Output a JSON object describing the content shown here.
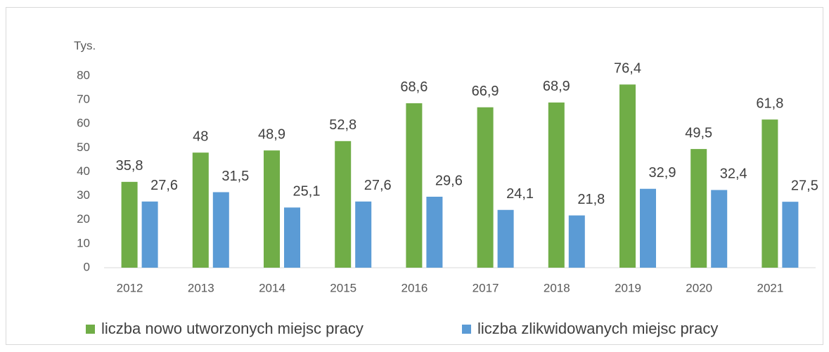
{
  "chart_data": {
    "type": "bar",
    "y_label": "Tys.",
    "categories": [
      "2012",
      "2013",
      "2014",
      "2015",
      "2016",
      "2017",
      "2018",
      "2019",
      "2020",
      "2021"
    ],
    "series": [
      {
        "name": "liczba nowo utworzonych miejsc pracy",
        "color": "#70ad47",
        "values": [
          35.8,
          48,
          48.9,
          52.8,
          68.6,
          66.9,
          68.9,
          76.4,
          49.5,
          61.8
        ],
        "value_labels": [
          "35,8",
          "48",
          "48,9",
          "52,8",
          "68,6",
          "66,9",
          "68,9",
          "76,4",
          "49,5",
          "61,8"
        ]
      },
      {
        "name": "liczba zlikwidowanych miejsc pracy",
        "color": "#5b9bd5",
        "values": [
          27.6,
          31.5,
          25.1,
          27.6,
          29.6,
          24.1,
          21.8,
          32.9,
          32.4,
          27.5
        ],
        "value_labels": [
          "27,6",
          "31,5",
          "25,1",
          "27,6",
          "29,6",
          "24,1",
          "21,8",
          "32,9",
          "32,4",
          "27,5"
        ]
      }
    ],
    "ylim": [
      0,
      80
    ],
    "yticks": [
      0,
      10,
      20,
      30,
      40,
      50,
      60,
      70,
      80
    ],
    "grid": false,
    "legend": "bottom"
  }
}
